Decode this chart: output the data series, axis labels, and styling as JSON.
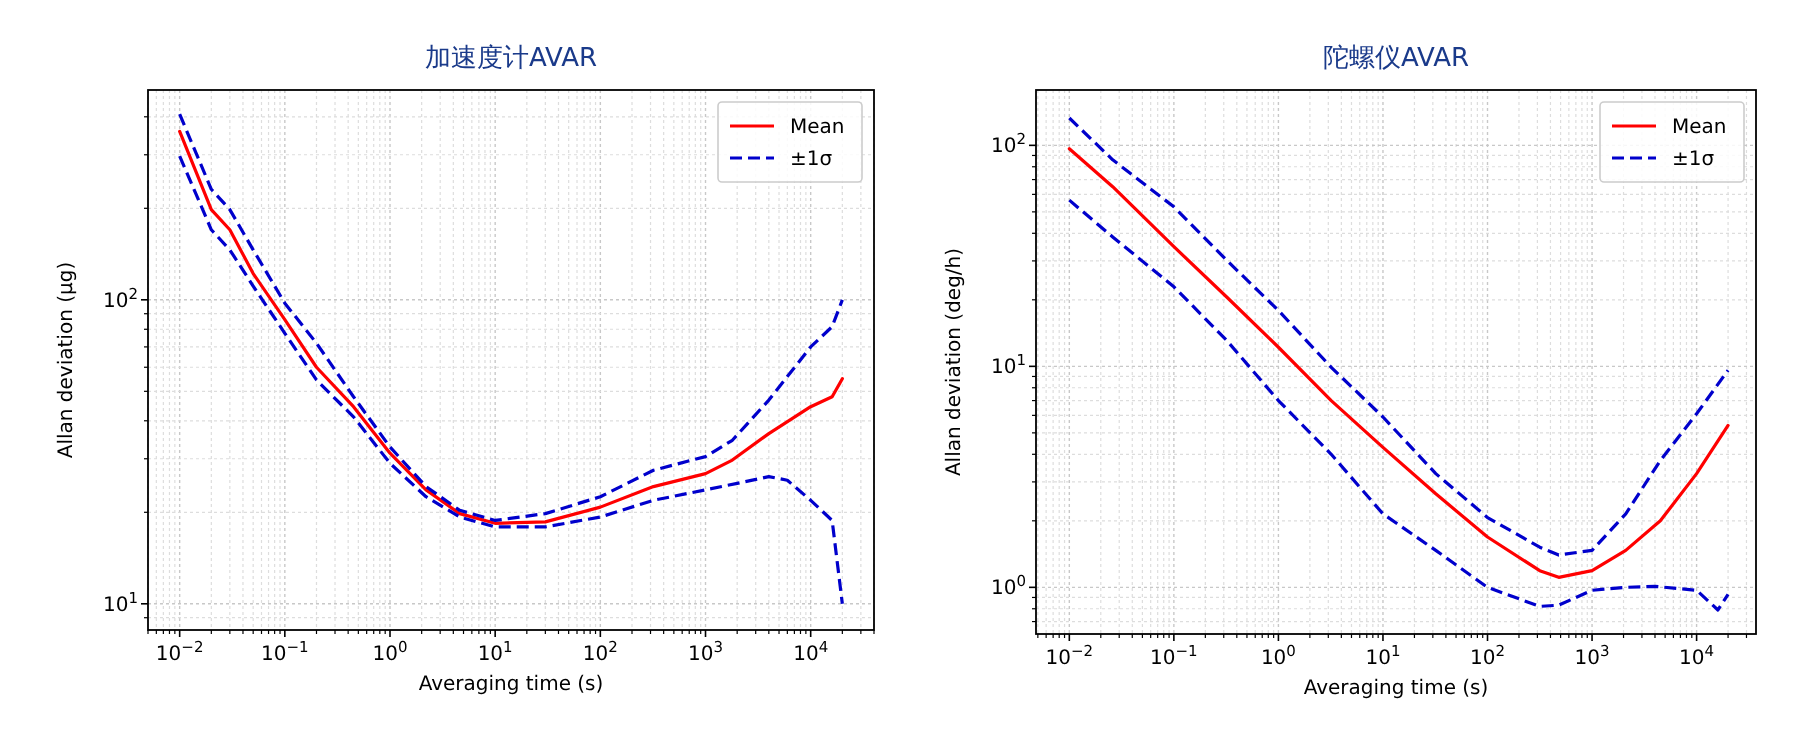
{
  "chart_data": [
    {
      "type": "line",
      "title": "加速度计AVAR",
      "xlabel": "Averaging time (s)",
      "ylabel": "Allan deviation (μg)",
      "log": "xy",
      "grid": true,
      "legend": "top right",
      "xlim": [
        0.005,
        40000
      ],
      "ylim": [
        8.2,
        490
      ],
      "xticks": [
        {
          "value": 0.01,
          "label": "10$^{−2}$"
        },
        {
          "value": 0.1,
          "label": "10$^{−1}$"
        },
        {
          "value": 1,
          "label": "10$^{0}$"
        },
        {
          "value": 10,
          "label": "10$^{1}$"
        },
        {
          "value": 100,
          "label": "10$^{2}$"
        },
        {
          "value": 1000,
          "label": "10$^{3}$"
        },
        {
          "value": 10000,
          "label": "10$^{4}$"
        }
      ],
      "yticks": [
        {
          "value": 10,
          "label": "10$^{1}$"
        },
        {
          "value": 100,
          "label": "10$^{2}$"
        }
      ],
      "series": [
        {
          "name": "Mean",
          "color": "#ff0000",
          "line_style": "solid",
          "x": [
            0.01,
            0.02,
            0.03,
            0.05,
            0.1,
            0.2,
            0.45,
            1,
            2.2,
            4.6,
            10,
            30,
            100,
            320,
            1000,
            1800,
            4000,
            10000,
            16000,
            20000
          ],
          "values": [
            358,
            198,
            170,
            122,
            86,
            60,
            44.5,
            31.3,
            23.7,
            19.8,
            18.4,
            18.6,
            20.8,
            24.3,
            26.8,
            29.7,
            36.3,
            44.5,
            48,
            55
          ]
        },
        {
          "name": "±1σ",
          "color": "#0000cc",
          "line_style": "dashed",
          "x": [
            0.01,
            0.02,
            0.03,
            0.05,
            0.1,
            0.2,
            0.45,
            1,
            2.2,
            4.6,
            10,
            30,
            100,
            320,
            1000,
            1800,
            4000,
            10000,
            16000,
            20000
          ],
          "values": [
            408,
            231,
            198,
            146,
            97.5,
            72,
            48,
            32.8,
            24.3,
            20.3,
            18.8,
            19.8,
            22.5,
            27.5,
            30.5,
            34.5,
            46.8,
            70,
            81.6,
            100
          ]
        },
        {
          "color": "#0000cc",
          "line_style": "dashed",
          "x": [
            0.01,
            0.02,
            0.03,
            0.05,
            0.1,
            0.2,
            0.45,
            1,
            2.2,
            4.6,
            10,
            30,
            100,
            320,
            1000,
            2000,
            4000,
            6000,
            10000,
            16000,
            20000
          ],
          "values": [
            297,
            170,
            146,
            111,
            77.6,
            54.5,
            41.2,
            29,
            22.5,
            19.3,
            17.9,
            17.9,
            19.3,
            21.9,
            23.7,
            24.9,
            26.2,
            25.5,
            21.9,
            18.8,
            10
          ]
        }
      ]
    },
    {
      "type": "line",
      "title": "陀螺仪AVAR",
      "xlabel": "Averaging time (s)",
      "ylabel": "Allan deviation (deg/h)",
      "log": "xy",
      "grid": true,
      "legend": "top right",
      "xlim": [
        0.0048,
        37000
      ],
      "ylim": [
        0.615,
        178
      ],
      "xticks": [
        {
          "value": 0.01,
          "label": "10$^{−2}$"
        },
        {
          "value": 0.1,
          "label": "10$^{−1}$"
        },
        {
          "value": 1,
          "label": "10$^{0}$"
        },
        {
          "value": 10,
          "label": "10$^{1}$"
        },
        {
          "value": 100,
          "label": "10$^{2}$"
        },
        {
          "value": 1000,
          "label": "10$^{3}$"
        },
        {
          "value": 10000,
          "label": "10$^{4}$"
        }
      ],
      "yticks": [
        {
          "value": 1,
          "label": "10$^{0}$"
        },
        {
          "value": 10,
          "label": "10$^{1}$"
        },
        {
          "value": 100,
          "label": "10$^{2}$"
        }
      ],
      "series": [
        {
          "name": "Mean",
          "color": "#ff0000",
          "line_style": "solid",
          "x": [
            0.01,
            0.026,
            0.1,
            0.32,
            1,
            3.2,
            10,
            32,
            100,
            316,
            480,
            1000,
            2100,
            4500,
            10000,
            20000
          ],
          "values": [
            96.5,
            65,
            34.8,
            20.6,
            12.2,
            7.0,
            4.3,
            2.65,
            1.69,
            1.19,
            1.11,
            1.19,
            1.47,
            2.0,
            3.27,
            5.4
          ]
        },
        {
          "name": "±1σ",
          "color": "#0000cc",
          "line_style": "dashed",
          "x": [
            0.01,
            0.026,
            0.1,
            0.32,
            1,
            3.2,
            10,
            32,
            100,
            316,
            480,
            1000,
            2100,
            4500,
            10000,
            20000
          ],
          "values": [
            133,
            86,
            52.7,
            30.2,
            17.9,
            9.9,
            5.9,
            3.27,
            2.07,
            1.52,
            1.4,
            1.47,
            2.15,
            3.75,
            6.1,
            9.6
          ]
        },
        {
          "color": "#0000cc",
          "line_style": "dashed",
          "x": [
            0.01,
            0.026,
            0.1,
            0.32,
            1,
            3.2,
            10,
            32,
            100,
            316,
            480,
            1000,
            2100,
            4000,
            10000,
            16000,
            20000
          ],
          "values": [
            56.5,
            38.5,
            22.9,
            13.1,
            7.0,
            4.0,
            2.15,
            1.47,
            1.0,
            0.82,
            0.83,
            0.97,
            1.0,
            1.01,
            0.97,
            0.79,
            0.93
          ]
        }
      ]
    }
  ]
}
